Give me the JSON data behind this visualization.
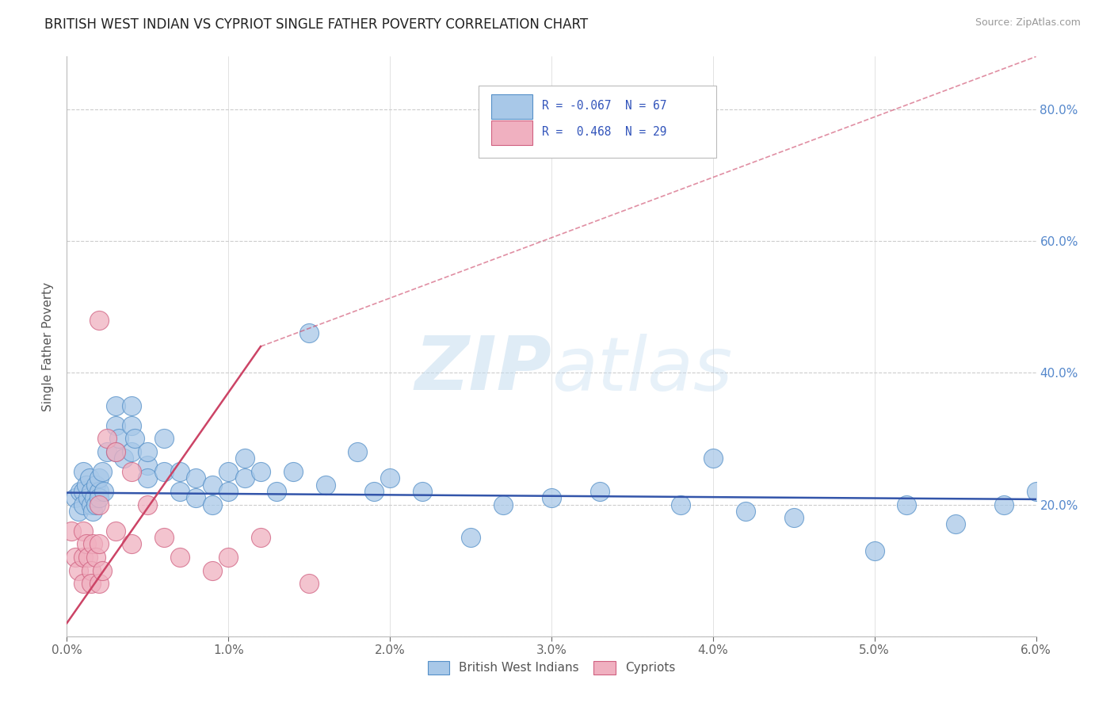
{
  "title": "BRITISH WEST INDIAN VS CYPRIOT SINGLE FATHER POVERTY CORRELATION CHART",
  "source": "Source: ZipAtlas.com",
  "ylabel": "Single Father Poverty",
  "xlim": [
    0.0,
    0.06
  ],
  "ylim": [
    0.0,
    0.88
  ],
  "ytick_values": [
    0.0,
    0.2,
    0.4,
    0.6,
    0.8
  ],
  "ytick_labels": [
    "",
    "20.0%",
    "40.0%",
    "60.0%",
    "80.0%"
  ],
  "xtick_values": [
    0.0,
    0.01,
    0.02,
    0.03,
    0.04,
    0.05,
    0.06
  ],
  "xtick_labels": [
    "0.0%",
    "1.0%",
    "2.0%",
    "3.0%",
    "4.0%",
    "5.0%",
    "6.0%"
  ],
  "blue_fill": "#a8c8e8",
  "blue_edge": "#5590c8",
  "pink_fill": "#f0b0c0",
  "pink_edge": "#d06080",
  "blue_trend_color": "#3355aa",
  "pink_trend_color": "#cc4466",
  "watermark_color": "#cce0f0",
  "grid_color": "#cccccc",
  "background_color": "#ffffff",
  "bwi_x": [
    0.0005,
    0.0007,
    0.0008,
    0.001,
    0.001,
    0.001,
    0.0012,
    0.0013,
    0.0014,
    0.0015,
    0.0015,
    0.0016,
    0.0017,
    0.0018,
    0.0018,
    0.002,
    0.002,
    0.002,
    0.0022,
    0.0023,
    0.0025,
    0.003,
    0.003,
    0.003,
    0.0032,
    0.0035,
    0.004,
    0.004,
    0.004,
    0.0042,
    0.005,
    0.005,
    0.005,
    0.006,
    0.006,
    0.007,
    0.007,
    0.008,
    0.008,
    0.009,
    0.009,
    0.01,
    0.01,
    0.011,
    0.011,
    0.012,
    0.013,
    0.014,
    0.015,
    0.016,
    0.018,
    0.019,
    0.02,
    0.022,
    0.025,
    0.027,
    0.03,
    0.033,
    0.038,
    0.04,
    0.042,
    0.045,
    0.05,
    0.052,
    0.055,
    0.058,
    0.06
  ],
  "bwi_y": [
    0.21,
    0.19,
    0.22,
    0.25,
    0.22,
    0.2,
    0.23,
    0.21,
    0.24,
    0.2,
    0.22,
    0.19,
    0.21,
    0.23,
    0.2,
    0.22,
    0.24,
    0.21,
    0.25,
    0.22,
    0.28,
    0.35,
    0.32,
    0.28,
    0.3,
    0.27,
    0.35,
    0.32,
    0.28,
    0.3,
    0.26,
    0.28,
    0.24,
    0.3,
    0.25,
    0.25,
    0.22,
    0.24,
    0.21,
    0.23,
    0.2,
    0.22,
    0.25,
    0.24,
    0.27,
    0.25,
    0.22,
    0.25,
    0.46,
    0.23,
    0.28,
    0.22,
    0.24,
    0.22,
    0.15,
    0.2,
    0.21,
    0.22,
    0.2,
    0.27,
    0.19,
    0.18,
    0.13,
    0.2,
    0.17,
    0.2,
    0.22
  ],
  "cyp_x": [
    0.0003,
    0.0005,
    0.0007,
    0.001,
    0.001,
    0.001,
    0.0012,
    0.0013,
    0.0015,
    0.0015,
    0.0016,
    0.0018,
    0.002,
    0.002,
    0.002,
    0.002,
    0.0022,
    0.0025,
    0.003,
    0.003,
    0.004,
    0.004,
    0.005,
    0.006,
    0.007,
    0.009,
    0.01,
    0.012,
    0.015
  ],
  "cyp_y": [
    0.16,
    0.12,
    0.1,
    0.08,
    0.12,
    0.16,
    0.14,
    0.12,
    0.1,
    0.08,
    0.14,
    0.12,
    0.08,
    0.14,
    0.2,
    0.48,
    0.1,
    0.3,
    0.16,
    0.28,
    0.14,
    0.25,
    0.2,
    0.15,
    0.12,
    0.1,
    0.12,
    0.15,
    0.08
  ],
  "bwi_trend": [
    0.0,
    0.06,
    0.218,
    0.208
  ],
  "cyp_trend_solid": [
    0.0,
    0.012,
    0.02,
    0.44
  ],
  "cyp_trend_dashed": [
    0.012,
    0.06,
    0.44,
    0.88
  ]
}
